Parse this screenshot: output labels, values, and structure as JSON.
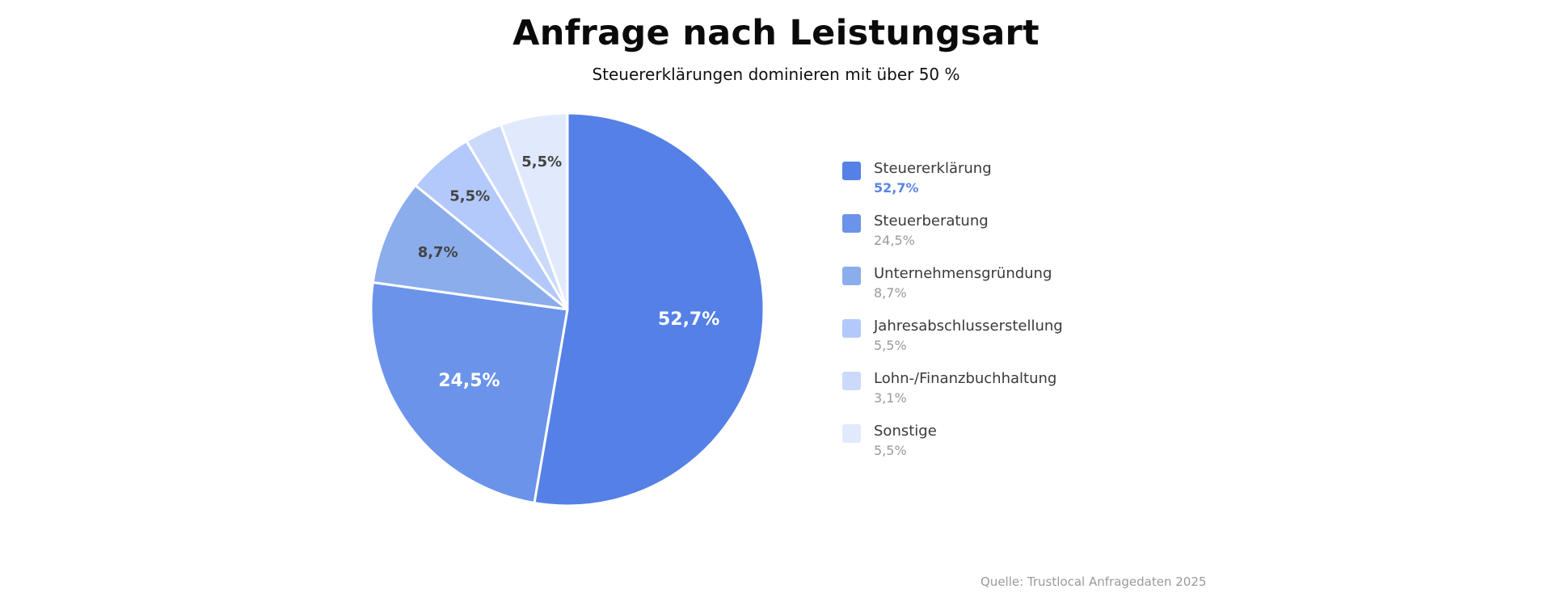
{
  "chart_data": {
    "type": "pie",
    "title": "Anfrage nach Leistungsart",
    "subtitle": "Steuererklärungen dominieren mit über 50 %",
    "categories": [
      "Steuererklärung",
      "Steuerberatung",
      "Unternehmensgründung",
      "Jahresabschlusserstellung",
      "Lohn-/Finanzbuchhaltung",
      "Sonstige"
    ],
    "values": [
      52.7,
      24.5,
      8.7,
      5.5,
      3.1,
      5.5
    ],
    "value_labels": [
      "52,7%",
      "24,5%",
      "8,7%",
      "5,5%",
      "3,1%",
      "5,5%"
    ],
    "slice_labels_shown": [
      "52,7%",
      "24,5%",
      "8,7%",
      "5,5%",
      "",
      "5,5%"
    ],
    "colors": [
      "#5580e6",
      "#6b93ea",
      "#8cadec",
      "#b3c9fb",
      "#cbdafa",
      "#e1eafd"
    ],
    "label_colors": [
      "#ffffff",
      "#ffffff",
      "#444444",
      "#444444",
      "#444444",
      "#444444"
    ],
    "start_angle_deg": 0,
    "direction": "clockwise",
    "legend_position": "right",
    "source": "Quelle: Trustlocal Anfragedaten 2025"
  }
}
